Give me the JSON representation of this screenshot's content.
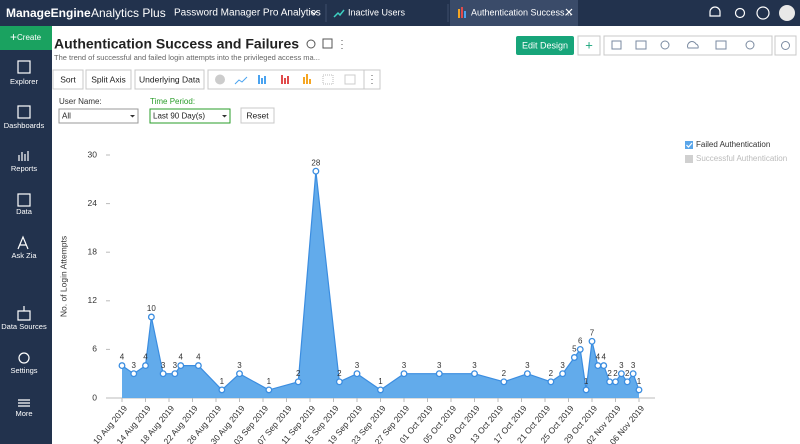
{
  "header": {
    "brand": "ManageEngine",
    "product": "Analytics Plus",
    "workspace": "Password Manager Pro Analytics",
    "tabs": [
      "Inactive Users",
      "Authentication Success..."
    ]
  },
  "sidebar": {
    "create": "Create",
    "items": [
      "Explorer",
      "Dashboards",
      "Reports",
      "Data",
      "Ask Zia",
      "Data Sources",
      "Settings",
      "More"
    ]
  },
  "report": {
    "title": "Authentication Success and Failures",
    "description": "The trend of successful and failed login attempts into the privileged access ma...",
    "edit_button": "Edit Design",
    "toolbar": [
      "Sort",
      "Split Axis",
      "Underlying Data"
    ],
    "filters": [
      {
        "label": "User Name:",
        "value": "All"
      },
      {
        "label": "Time Period:",
        "value": "Last 90 Day(s)"
      }
    ],
    "reset": "Reset"
  },
  "chart_data": {
    "type": "area",
    "y_label": "No. of Login Attempts",
    "x": [
      "2019-08-10",
      "2019-08-12",
      "2019-08-14",
      "2019-08-15",
      "2019-08-17",
      "2019-08-19",
      "2019-08-20",
      "2019-08-23",
      "2019-08-27",
      "2019-08-30",
      "2019-09-04",
      "2019-09-09",
      "2019-09-12",
      "2019-09-16",
      "2019-09-19",
      "2019-09-23",
      "2019-09-27",
      "2019-10-03",
      "2019-10-09",
      "2019-10-14",
      "2019-10-18",
      "2019-10-22",
      "2019-10-24",
      "2019-10-26",
      "2019-10-27",
      "2019-10-28",
      "2019-10-29",
      "2019-10-30",
      "2019-10-31",
      "2019-11-01",
      "2019-11-02",
      "2019-11-03",
      "2019-11-04",
      "2019-11-05",
      "2019-11-06"
    ],
    "series": [
      {
        "name": "Failed Authentication",
        "color": "#5aa6ea",
        "values": [
          4,
          3,
          4,
          10,
          3,
          3,
          4,
          4,
          1,
          3,
          1,
          2,
          28,
          2,
          3,
          1,
          3,
          3,
          3,
          2,
          3,
          2,
          3,
          5,
          6,
          1,
          7,
          4,
          4,
          2,
          2,
          3,
          2,
          3,
          1
        ]
      }
    ],
    "inactive_series": [
      {
        "name": "Successful Authentication",
        "color": "#d0d0d0"
      }
    ],
    "xlim": [
      "2019-08-10",
      "2019-11-06"
    ],
    "xticks": [
      {
        "value": "2019-08-10",
        "label": "10 Aug 2019"
      },
      {
        "value": "2019-08-14",
        "label": "14 Aug 2019"
      },
      {
        "value": "2019-08-18",
        "label": "18 Aug 2019"
      },
      {
        "value": "2019-08-22",
        "label": "22 Aug 2019"
      },
      {
        "value": "2019-08-26",
        "label": "26 Aug 2019"
      },
      {
        "value": "2019-08-30",
        "label": "30 Aug 2019"
      },
      {
        "value": "2019-09-03",
        "label": "03 Sep 2019"
      },
      {
        "value": "2019-09-07",
        "label": "07 Sep 2019"
      },
      {
        "value": "2019-09-11",
        "label": "11 Sep 2019"
      },
      {
        "value": "2019-09-15",
        "label": "15 Sep 2019"
      },
      {
        "value": "2019-09-19",
        "label": "19 Sep 2019"
      },
      {
        "value": "2019-09-23",
        "label": "23 Sep 2019"
      },
      {
        "value": "2019-09-27",
        "label": "27 Sep 2019"
      },
      {
        "value": "2019-10-01",
        "label": "01 Oct 2019"
      },
      {
        "value": "2019-10-05",
        "label": "05 Oct 2019"
      },
      {
        "value": "2019-10-09",
        "label": "09 Oct 2019"
      },
      {
        "value": "2019-10-13",
        "label": "13 Oct 2019"
      },
      {
        "value": "2019-10-17",
        "label": "17 Oct 2019"
      },
      {
        "value": "2019-10-21",
        "label": "21 Oct 2019"
      },
      {
        "value": "2019-10-25",
        "label": "25 Oct 2019"
      },
      {
        "value": "2019-10-29",
        "label": "29 Oct 2019"
      },
      {
        "value": "2019-11-02",
        "label": "02 Nov 2019"
      },
      {
        "value": "2019-11-06",
        "label": "06 Nov 2019"
      }
    ],
    "ylim": [
      0,
      30
    ],
    "yticks": [
      0,
      6,
      12,
      18,
      24,
      30
    ],
    "grid": false
  }
}
